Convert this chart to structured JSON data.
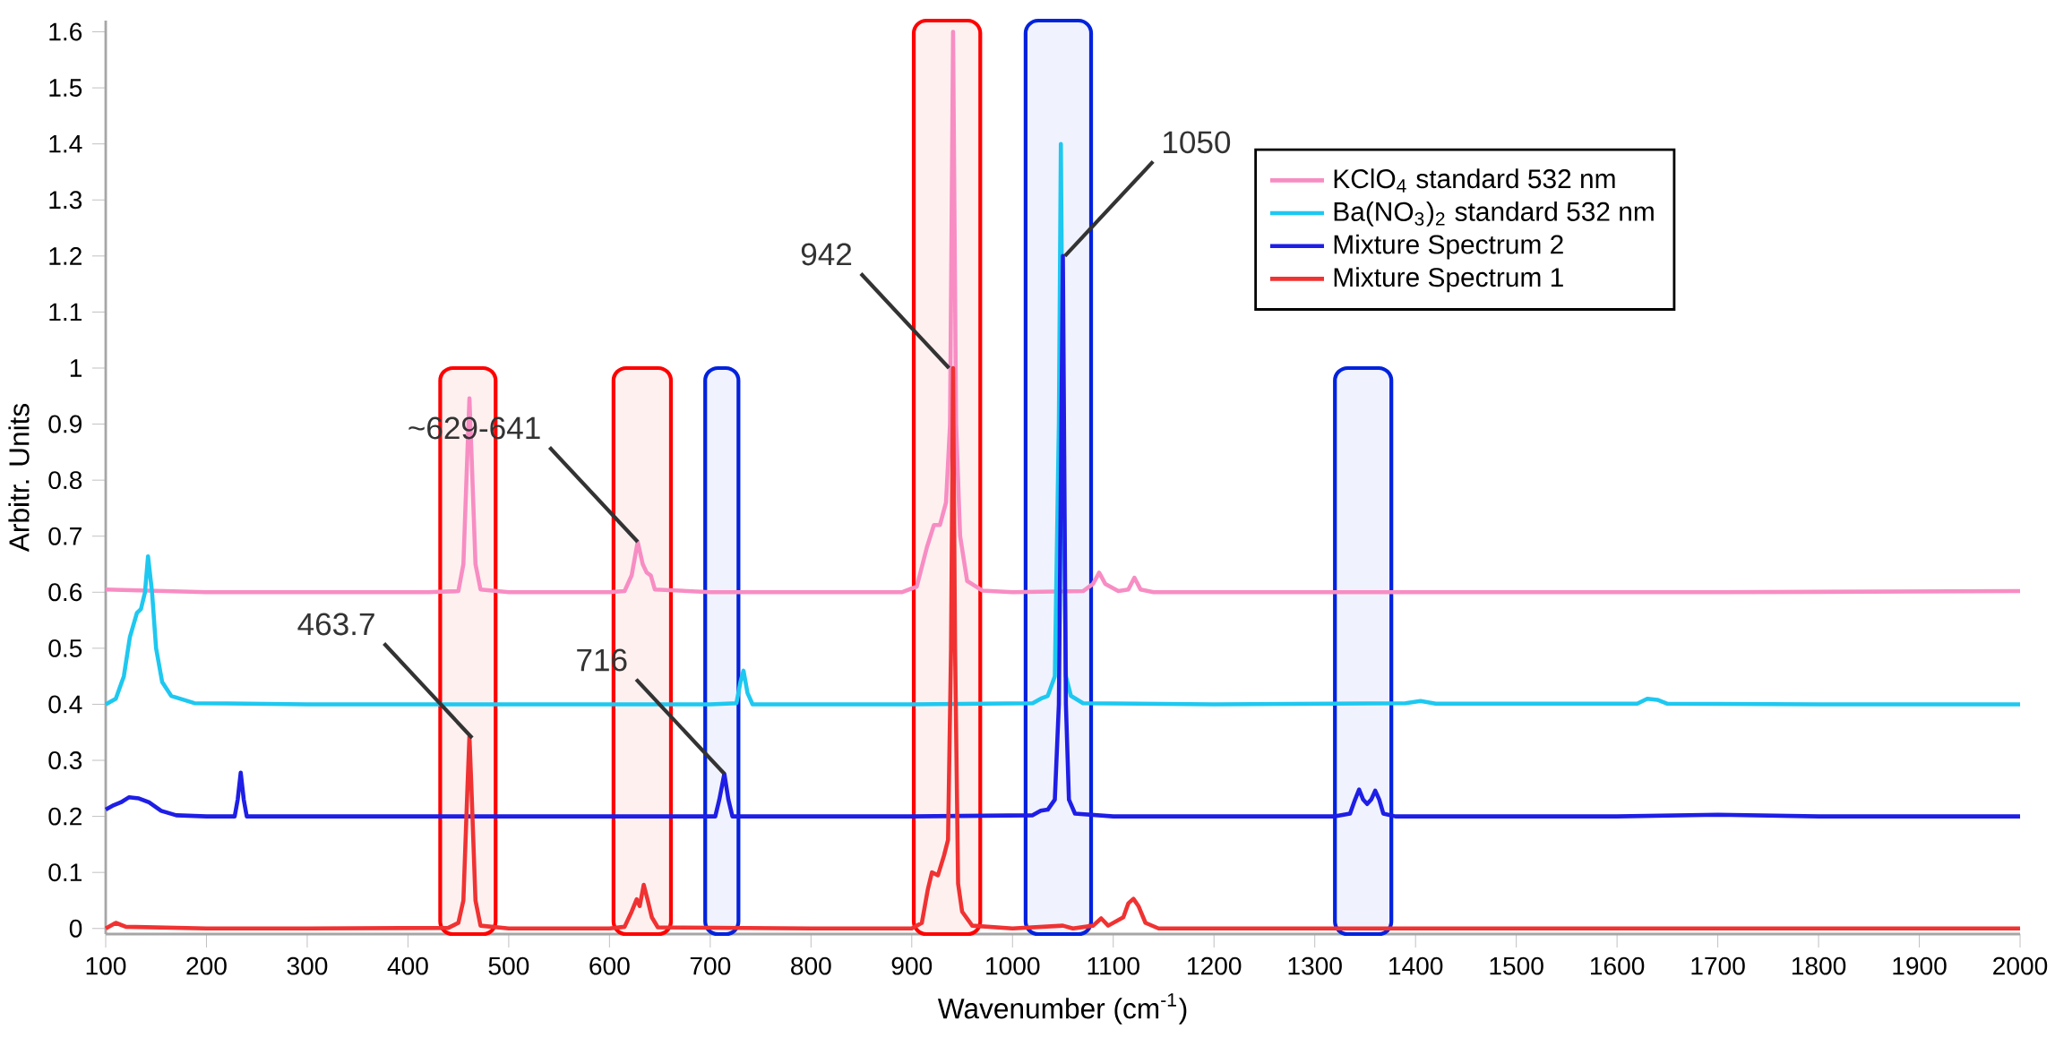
{
  "chart_data": {
    "type": "line",
    "xlabel": "Wavenumber (cm$^{-1}$)",
    "ylabel": "Arbitr. Units",
    "xlim": [
      100,
      2000
    ],
    "ylim": [
      -0.01,
      1.62
    ],
    "xticks": [
      100,
      200,
      300,
      400,
      500,
      600,
      700,
      800,
      900,
      1000,
      1100,
      1200,
      1300,
      1400,
      1500,
      1600,
      1700,
      1800,
      1900,
      2000
    ],
    "yticks": [
      0,
      0.1,
      0.2,
      0.3,
      0.4,
      0.5,
      0.6,
      0.7,
      0.8,
      0.9,
      1,
      1.1,
      1.2,
      1.3,
      1.4,
      1.5,
      1.6
    ],
    "legend": "top right",
    "series": [
      {
        "name": "KClO$_{4}$ standard 532 nm",
        "color": "#f78dc3",
        "x": [
          100,
          200,
          300,
          420,
          450,
          455,
          459,
          461,
          463,
          467,
          472,
          500,
          600,
          615,
          622,
          628,
          633,
          637,
          641,
          645,
          700,
          800,
          890,
          905,
          915,
          922,
          928,
          934,
          938,
          941,
          944,
          948,
          955,
          970,
          1000,
          1070,
          1080,
          1086,
          1092,
          1105,
          1115,
          1121,
          1127,
          1140,
          1300,
          1500,
          1700,
          2000
        ],
        "values": [
          0.605,
          0.6,
          0.6,
          0.6,
          0.602,
          0.65,
          0.85,
          0.946,
          0.85,
          0.65,
          0.605,
          0.6,
          0.6,
          0.602,
          0.63,
          0.69,
          0.65,
          0.635,
          0.63,
          0.605,
          0.6,
          0.6,
          0.6,
          0.61,
          0.68,
          0.72,
          0.72,
          0.76,
          0.9,
          1.6,
          0.9,
          0.7,
          0.62,
          0.603,
          0.6,
          0.602,
          0.615,
          0.635,
          0.615,
          0.602,
          0.605,
          0.626,
          0.605,
          0.6,
          0.6,
          0.6,
          0.6,
          0.602
        ]
      },
      {
        "name": "Ba(NO$_{3}$)$_{2}$ standard 532 nm",
        "color": "#1ec8f0",
        "x": [
          100,
          110,
          118,
          124,
          131,
          135,
          139,
          142,
          146,
          150,
          156,
          165,
          188,
          300,
          500,
          700,
          726,
          730,
          733,
          737,
          742,
          900,
          1020,
          1028,
          1035,
          1042,
          1046,
          1048,
          1050,
          1053,
          1058,
          1070,
          1200,
          1390,
          1405,
          1420,
          1620,
          1630,
          1640,
          1650,
          1800,
          2000
        ],
        "values": [
          0.4,
          0.41,
          0.45,
          0.52,
          0.563,
          0.57,
          0.6,
          0.664,
          0.6,
          0.5,
          0.44,
          0.415,
          0.402,
          0.4,
          0.4,
          0.4,
          0.402,
          0.44,
          0.46,
          0.42,
          0.4,
          0.4,
          0.402,
          0.41,
          0.415,
          0.45,
          0.9,
          1.4,
          0.9,
          0.45,
          0.415,
          0.402,
          0.4,
          0.402,
          0.406,
          0.401,
          0.401,
          0.41,
          0.408,
          0.401,
          0.4,
          0.4
        ]
      },
      {
        "name": "Mixture Spectrum 2",
        "color": "#1e1ee6",
        "x": [
          100,
          108,
          115,
          123,
          133,
          143,
          155,
          170,
          200,
          228,
          231,
          234,
          237,
          240,
          400,
          600,
          705,
          709,
          714,
          718,
          722,
          900,
          1020,
          1028,
          1035,
          1042,
          1046,
          1050,
          1053,
          1056,
          1062,
          1100,
          1320,
          1335,
          1340,
          1344,
          1348,
          1352,
          1356,
          1360,
          1364,
          1368,
          1380,
          1600,
          1700,
          1800,
          2000
        ],
        "values": [
          0.212,
          0.22,
          0.225,
          0.234,
          0.232,
          0.225,
          0.21,
          0.202,
          0.2,
          0.2,
          0.23,
          0.278,
          0.23,
          0.2,
          0.2,
          0.2,
          0.2,
          0.23,
          0.276,
          0.23,
          0.2,
          0.2,
          0.202,
          0.21,
          0.212,
          0.23,
          0.4,
          1.2,
          0.4,
          0.23,
          0.205,
          0.2,
          0.2,
          0.205,
          0.23,
          0.248,
          0.23,
          0.222,
          0.23,
          0.246,
          0.23,
          0.205,
          0.2,
          0.2,
          0.203,
          0.2,
          0.2
        ]
      },
      {
        "name": "Mixture Spectrum 1",
        "color": "#f03232",
        "x": [
          100,
          110,
          120,
          200,
          300,
          440,
          450,
          455,
          459,
          461,
          463,
          467,
          472,
          500,
          600,
          615,
          622,
          627,
          630,
          634,
          638,
          642,
          648,
          800,
          900,
          910,
          916,
          920,
          926,
          932,
          936,
          939,
          941,
          943,
          946,
          950,
          960,
          1000,
          1050,
          1060,
          1080,
          1088,
          1095,
          1110,
          1115,
          1120,
          1125,
          1132,
          1145,
          1400,
          1700,
          2000
        ],
        "values": [
          0,
          0.01,
          0.003,
          0,
          0,
          0.001,
          0.01,
          0.05,
          0.25,
          0.343,
          0.25,
          0.05,
          0.005,
          0,
          0,
          0.003,
          0.03,
          0.052,
          0.04,
          0.078,
          0.05,
          0.02,
          0.002,
          0,
          0,
          0.01,
          0.07,
          0.1,
          0.095,
          0.13,
          0.158,
          0.5,
          1.0,
          0.5,
          0.08,
          0.03,
          0.005,
          0,
          0.005,
          0,
          0.005,
          0.018,
          0.005,
          0.02,
          0.045,
          0.053,
          0.04,
          0.01,
          0,
          0,
          0,
          0
        ]
      }
    ],
    "bands": [
      {
        "axis": "x",
        "from": 432,
        "to": 487,
        "color": "#ff0000"
      },
      {
        "axis": "x",
        "from": 604,
        "to": 661,
        "color": "#ff0000"
      },
      {
        "axis": "x",
        "from": 695,
        "to": 728,
        "color": "#0022dd"
      },
      {
        "axis": "x",
        "from": 902,
        "to": 968,
        "color": "#ff0000"
      },
      {
        "axis": "x",
        "from": 1013,
        "to": 1078,
        "color": "#0022dd"
      },
      {
        "axis": "x",
        "from": 1320,
        "to": 1376,
        "color": "#0022dd"
      }
    ],
    "annotations": [
      {
        "text": "463.7",
        "x": 463.7,
        "y": 0.34
      },
      {
        "text": "~629-641",
        "x": 628,
        "y": 0.69
      },
      {
        "text": "716",
        "x": 714,
        "y": 0.276
      },
      {
        "text": "942",
        "x": 937,
        "y": 1.0
      },
      {
        "text": "1050",
        "x": 1052,
        "y": 1.2
      }
    ]
  }
}
